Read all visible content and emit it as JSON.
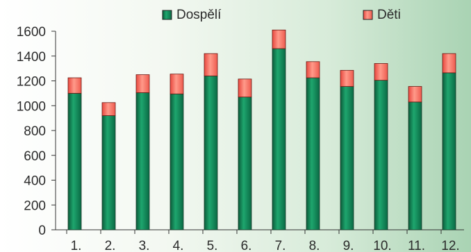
{
  "chart_data": {
    "type": "bar",
    "stacked": true,
    "categories": [
      "1.",
      "2.",
      "3.",
      "4.",
      "5.",
      "6.",
      "7.",
      "8.",
      "9.",
      "10.",
      "11.",
      "12."
    ],
    "series": [
      {
        "name": "Dospělí",
        "color": "#0e7a4c",
        "values": [
          1100,
          920,
          1105,
          1095,
          1240,
          1070,
          1460,
          1225,
          1155,
          1205,
          1030,
          1265
        ]
      },
      {
        "name": "Děti",
        "color": "#f0524a",
        "values": [
          125,
          105,
          145,
          160,
          180,
          145,
          150,
          130,
          130,
          135,
          125,
          155
        ]
      }
    ],
    "ylim": [
      0,
      1600
    ],
    "yticks": [
      0,
      200,
      400,
      600,
      800,
      1000,
      1200,
      1400,
      1600
    ],
    "ytick_labels": [
      "0",
      "200",
      "400",
      "600",
      "800",
      "1000",
      "1200",
      "1400",
      "1600"
    ],
    "legend_position": "top"
  }
}
